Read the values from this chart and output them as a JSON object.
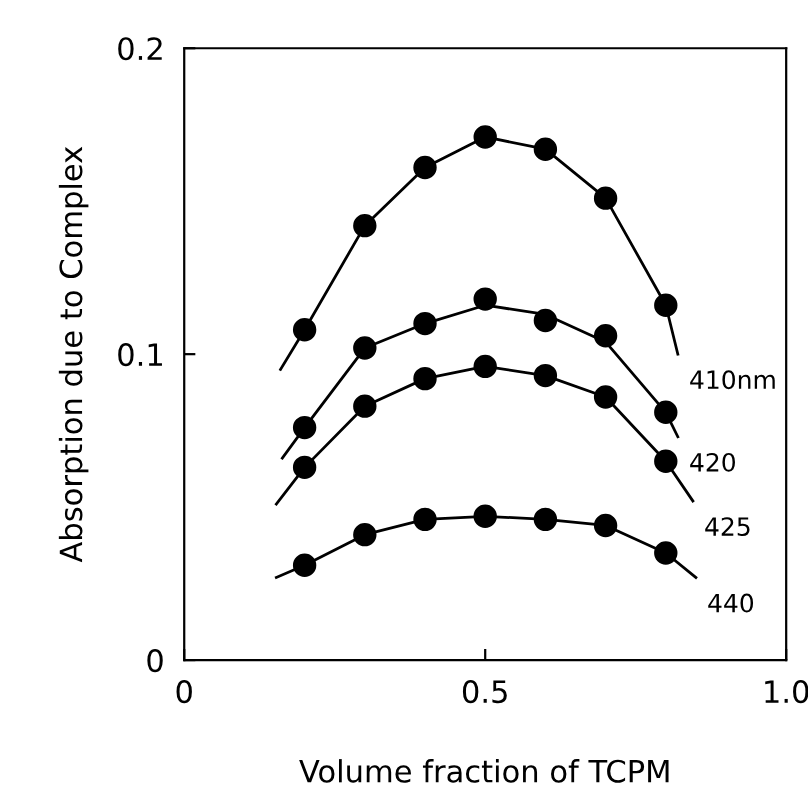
{
  "chart_data": {
    "type": "scatter",
    "xlabel": "Volume fraction of TCPM",
    "ylabel": "Absorption due to Complex",
    "x": [
      0.2,
      0.3,
      0.4,
      0.5,
      0.6,
      0.7,
      0.8
    ],
    "series": [
      {
        "color": "#000000",
        "values": [
          0.108,
          0.142,
          0.161,
          0.171,
          0.167,
          0.151,
          0.116
        ]
      },
      {
        "color": "#000000",
        "values": [
          0.076,
          0.102,
          0.11,
          0.118,
          0.111,
          0.106,
          0.081
        ]
      },
      {
        "color": "#000000",
        "values": [
          0.063,
          0.083,
          0.092,
          0.096,
          0.093,
          0.086,
          0.065
        ]
      },
      {
        "color": "#000000",
        "values": [
          0.031,
          0.041,
          0.046,
          0.047,
          0.046,
          0.044,
          0.035
        ]
      },
      {
        "type": "line",
        "name": "410nm",
        "marker": "none",
        "color": "#000000",
        "x": [
          0.16,
          0.2,
          0.3,
          0.4,
          0.5,
          0.6,
          0.7,
          0.8,
          0.82
        ],
        "values": [
          0.095,
          0.108,
          0.142,
          0.161,
          0.171,
          0.167,
          0.151,
          0.116,
          0.1
        ]
      },
      {
        "type": "line",
        "name": "420",
        "marker": "none",
        "color": "#000000",
        "x": [
          0.163,
          0.2,
          0.3,
          0.4,
          0.5,
          0.6,
          0.7,
          0.8,
          0.82
        ],
        "values": [
          0.066,
          0.076,
          0.102,
          0.11,
          0.116,
          0.113,
          0.104,
          0.081,
          0.073
        ]
      },
      {
        "type": "line",
        "name": "425",
        "marker": "none",
        "color": "#000000",
        "x": [
          0.153,
          0.2,
          0.3,
          0.4,
          0.5,
          0.6,
          0.7,
          0.8,
          0.845
        ],
        "values": [
          0.051,
          0.063,
          0.083,
          0.092,
          0.096,
          0.093,
          0.086,
          0.065,
          0.052
        ]
      },
      {
        "type": "line",
        "name": "440",
        "marker": "none",
        "color": "#000000",
        "x": [
          0.153,
          0.2,
          0.3,
          0.4,
          0.5,
          0.6,
          0.7,
          0.8,
          0.85
        ],
        "values": [
          0.027,
          0.031,
          0.041,
          0.046,
          0.047,
          0.046,
          0.044,
          0.035,
          0.027
        ]
      }
    ],
    "xlim": [
      0,
      1.0
    ],
    "xticks": [
      0,
      0.5,
      {
        "value": 1.0,
        "label": "1.0"
      }
    ],
    "ylim": [
      0,
      0.2
    ],
    "yticks": [
      0,
      0.1,
      0.2
    ],
    "marker": "circle",
    "line_style": "solid",
    "grid": false,
    "legend": false
  }
}
